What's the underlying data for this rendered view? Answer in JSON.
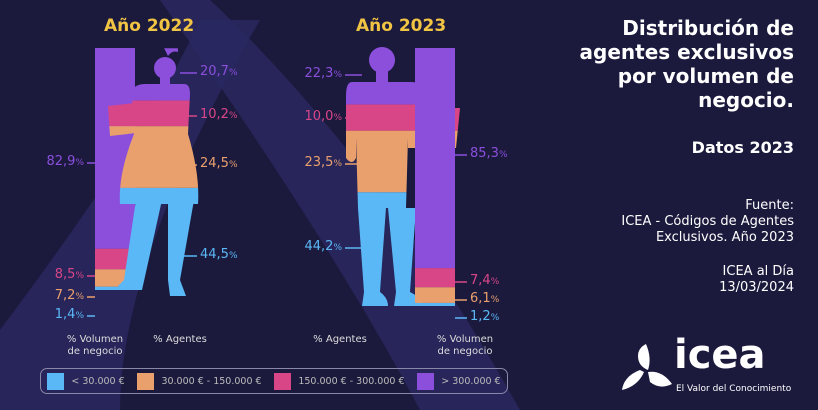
{
  "colors": {
    "background": "#1b1a3d",
    "band": "#2b2860",
    "lt30": "#5bb8f6",
    "r30_150": "#e9a06d",
    "r150_300": "#d94688",
    "gt300": "#8b4fdc",
    "year": "#f2c443"
  },
  "title": {
    "lines": [
      "Distribución de",
      "agentes exclusivos",
      "por volumen de",
      "negocio."
    ],
    "subtitle": "Datos 2023"
  },
  "source": {
    "label": "Fuente:",
    "line1": "ICEA - Códigos de Agentes",
    "line2": "Exclusivos. Año 2023"
  },
  "publication": {
    "line1": "ICEA al Día",
    "line2": "13/03/2024"
  },
  "logo": {
    "word": "icea",
    "tagline": "El Valor del Conocimiento"
  },
  "chart_data": [
    {
      "type": "bar",
      "title": "Año 2022",
      "stacked": true,
      "categories": [
        "% Volumen de negocio",
        "% Agentes"
      ],
      "series": [
        {
          "name": "< 30.000 €",
          "values": [
            1.4,
            44.5
          ]
        },
        {
          "name": "30.000 € - 150.000 €",
          "values": [
            7.2,
            24.5
          ]
        },
        {
          "name": "150.000 € - 300.000 €",
          "values": [
            8.5,
            10.2
          ]
        },
        {
          "name": "> 300.000 €",
          "values": [
            82.9,
            20.7
          ]
        }
      ],
      "labels": {
        "volume": [
          "1,4",
          "7,2",
          "8,5",
          "82,9"
        ],
        "agents": [
          "44,5",
          "24,5",
          "10,2",
          "20,7"
        ]
      },
      "axis_labels": {
        "volume": [
          "% Volumen",
          "de negocio"
        ],
        "agents": "% Agentes"
      }
    },
    {
      "type": "bar",
      "title": "Año 2023",
      "stacked": true,
      "categories": [
        "% Agentes",
        "% Volumen de negocio"
      ],
      "series": [
        {
          "name": "< 30.000 €",
          "values": [
            44.2,
            1.2
          ]
        },
        {
          "name": "30.000 € - 150.000 €",
          "values": [
            23.5,
            6.1
          ]
        },
        {
          "name": "150.000 € - 300.000 €",
          "values": [
            10.0,
            7.4
          ]
        },
        {
          "name": "> 300.000 €",
          "values": [
            22.3,
            85.3
          ]
        }
      ],
      "labels": {
        "volume": [
          "1,2",
          "6,1",
          "7,4",
          "85,3"
        ],
        "agents": [
          "44,2",
          "23,5",
          "10,0",
          "22,3"
        ]
      },
      "axis_labels": {
        "volume": [
          "% Volumen",
          "de negocio"
        ],
        "agents": "% Agentes"
      }
    }
  ],
  "percent_sign": "%",
  "legend": [
    "< 30.000 €",
    "30.000 € - 150.000 €",
    "150.000 € - 300.000 €",
    "> 300.000 €"
  ]
}
